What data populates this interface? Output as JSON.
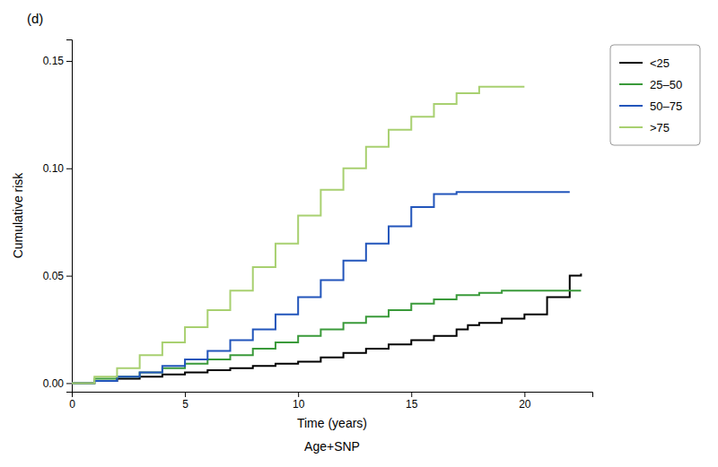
{
  "chart_data": {
    "type": "line",
    "title": "(d)",
    "xlabel": "Time (years)",
    "ylabel": "Cumulative risk",
    "annotations": [
      "Age+SNP"
    ],
    "line_style": "step",
    "grid": false,
    "legend": "right",
    "xlim": [
      0,
      23
    ],
    "ylim": [
      -0.004,
      0.16
    ],
    "xticks": [
      0,
      5,
      10,
      15,
      20
    ],
    "yticks": [
      {
        "value": 0,
        "label": "0.00"
      },
      0.05,
      {
        "value": 0.1,
        "label": "0.10"
      },
      0.15
    ],
    "series": [
      {
        "name": "<25",
        "color": "#000000",
        "x": [
          0,
          1,
          2,
          3,
          4,
          5,
          6,
          7,
          8,
          9,
          10,
          11,
          12,
          13,
          14,
          15,
          16,
          17,
          17.5,
          18,
          19,
          20,
          21,
          22,
          22.5
        ],
        "values": [
          0,
          0.001,
          0.002,
          0.003,
          0.004,
          0.005,
          0.006,
          0.007,
          0.008,
          0.009,
          0.01,
          0.012,
          0.014,
          0.016,
          0.018,
          0.02,
          0.022,
          0.025,
          0.027,
          0.028,
          0.03,
          0.032,
          0.04,
          0.05,
          0.051
        ]
      },
      {
        "name": "25–50",
        "color": "#3a9a3a",
        "x": [
          0,
          1,
          2,
          3,
          4,
          5,
          6,
          7,
          8,
          9,
          10,
          11,
          12,
          13,
          14,
          15,
          16,
          17,
          18,
          19,
          20,
          21,
          22,
          22.5
        ],
        "values": [
          0,
          0.002,
          0.003,
          0.005,
          0.007,
          0.009,
          0.011,
          0.013,
          0.016,
          0.019,
          0.022,
          0.025,
          0.028,
          0.031,
          0.034,
          0.037,
          0.039,
          0.041,
          0.042,
          0.043,
          0.043,
          0.043,
          0.043,
          0.043
        ]
      },
      {
        "name": "50–75",
        "color": "#2255bb",
        "x": [
          0,
          1,
          2,
          3,
          4,
          5,
          6,
          7,
          8,
          9,
          10,
          11,
          12,
          13,
          14,
          15,
          16,
          17,
          18,
          19,
          20,
          21,
          22
        ],
        "values": [
          0,
          0.001,
          0.003,
          0.005,
          0.008,
          0.011,
          0.015,
          0.02,
          0.025,
          0.032,
          0.04,
          0.048,
          0.057,
          0.065,
          0.073,
          0.082,
          0.088,
          0.089,
          0.089,
          0.089,
          0.089,
          0.089,
          0.089
        ]
      },
      {
        "name": ">75",
        "color": "#a8d070",
        "x": [
          0,
          1,
          2,
          3,
          4,
          5,
          6,
          7,
          8,
          9,
          10,
          11,
          12,
          13,
          14,
          15,
          16,
          17,
          18,
          19,
          20
        ],
        "values": [
          0,
          0.003,
          0.007,
          0.013,
          0.019,
          0.026,
          0.034,
          0.043,
          0.054,
          0.065,
          0.078,
          0.09,
          0.1,
          0.11,
          0.118,
          0.124,
          0.13,
          0.135,
          0.138,
          0.138,
          0.138
        ]
      }
    ]
  }
}
